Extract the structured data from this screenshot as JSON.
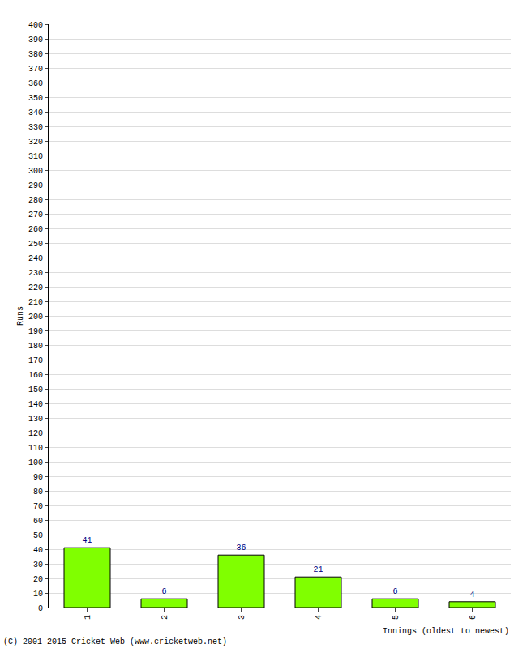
{
  "chart_data": {
    "type": "bar",
    "categories": [
      "1",
      "2",
      "3",
      "4",
      "5",
      "6"
    ],
    "values": [
      41,
      6,
      36,
      21,
      6,
      4
    ],
    "color": "#80ff00",
    "x_label": "Innings (oldest to newest)",
    "y_label": "Runs",
    "annotations": [
      "(C) 2001-2015 Cricket Web (www.cricketweb.net)"
    ],
    "ylim": [
      0,
      400
    ],
    "yticks": [
      0,
      10,
      20,
      30,
      40,
      50,
      60,
      70,
      80,
      90,
      100,
      110,
      120,
      130,
      140,
      150,
      160,
      170,
      180,
      190,
      200,
      210,
      220,
      230,
      240,
      250,
      260,
      270,
      280,
      290,
      300,
      310,
      320,
      330,
      340,
      350,
      360,
      370,
      380,
      390,
      400
    ],
    "grid": true,
    "data_labels": true
  }
}
